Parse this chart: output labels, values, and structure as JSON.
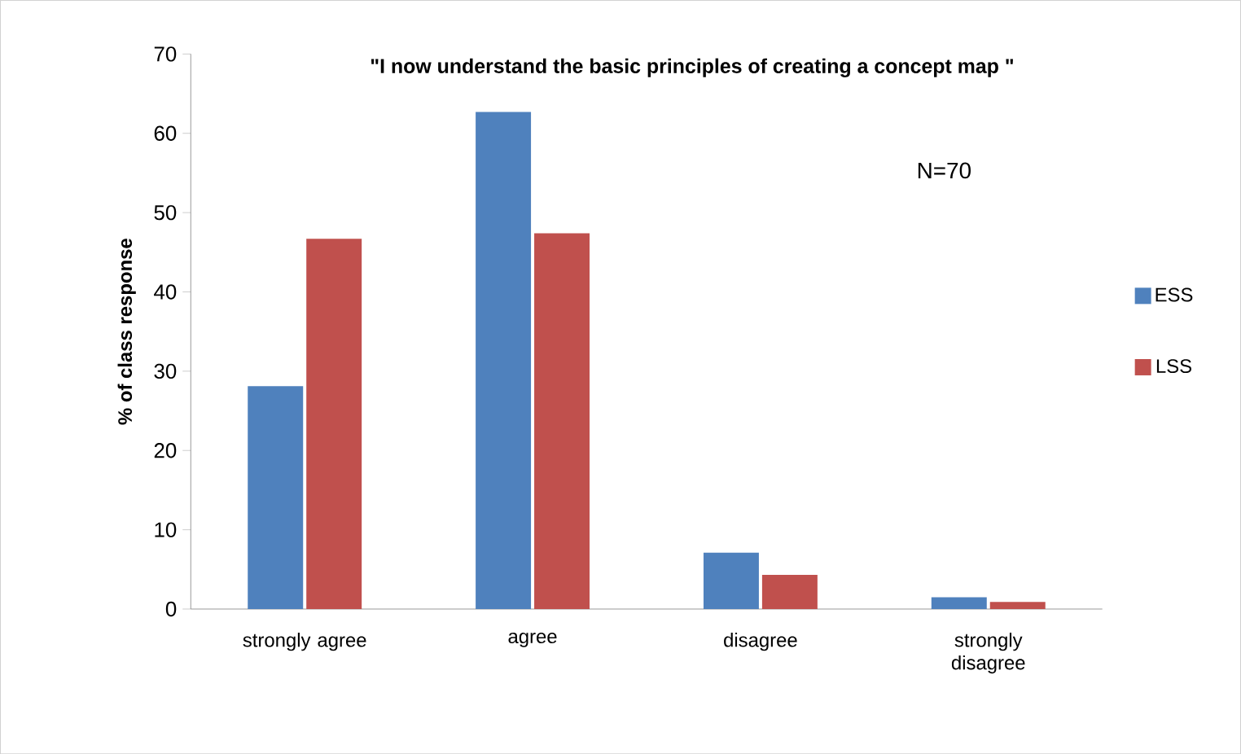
{
  "chart_data": {
    "type": "bar",
    "title": "\"I now understand the basic principles of creating a concept map \"",
    "ylabel": "% of class response",
    "categories": [
      "strongly agree",
      "agree",
      "disagree",
      "strongly disagree"
    ],
    "series": [
      {
        "name": "ESS",
        "color": "#4f81bd",
        "values": [
          28.1,
          62.7,
          7.1,
          1.5
        ]
      },
      {
        "name": "LSS",
        "color": "#c0504d",
        "values": [
          46.7,
          47.4,
          4.3,
          0.9
        ]
      }
    ],
    "ylim": [
      0,
      70
    ],
    "yticks": [
      0,
      10,
      20,
      30,
      40,
      50,
      60,
      70
    ],
    "legend": "right",
    "annotations": [
      "N=70"
    ]
  }
}
